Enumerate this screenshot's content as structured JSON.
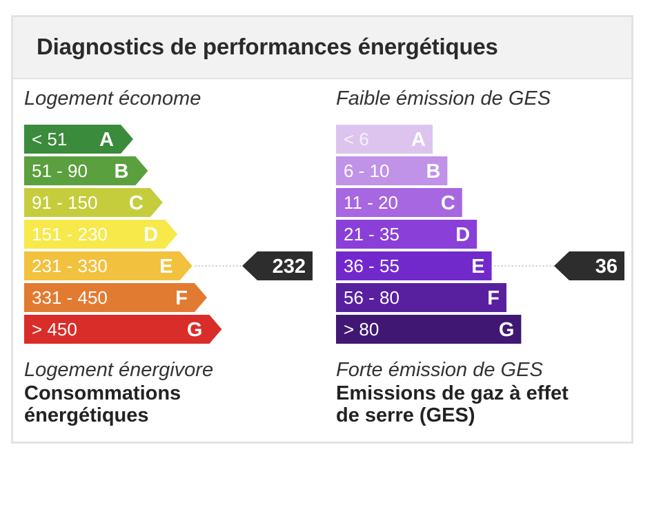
{
  "header": {
    "title": "Diagnostics de performances énergétiques"
  },
  "energy": {
    "top_caption": "Logement économe",
    "bottom_caption": "Logement énergivore",
    "title": "Consommations\nénergétiques"
  },
  "ges": {
    "top_caption": "Faible émission de GES",
    "bottom_caption": "Forte émission de GES",
    "title": "Emissions de gaz à effet\nde serre (GES)"
  },
  "chart_data": [
    {
      "type": "bar",
      "id": "energy",
      "title": "Consommations énergétiques",
      "categories": [
        "A",
        "B",
        "C",
        "D",
        "E",
        "F",
        "G"
      ],
      "ranges": [
        "< 51",
        "51 - 90",
        "91 - 150",
        "151 - 230",
        "231 - 330",
        "331 - 450",
        "> 450"
      ],
      "colors": [
        "#3a8b3c",
        "#5aa03e",
        "#c5cd3c",
        "#f7e94a",
        "#f2c13e",
        "#e27b32",
        "#d82d28"
      ],
      "range_text_colors": [
        "#ffffff",
        "#ffffff",
        "#ffffff",
        "#ffffff",
        "#ffffff",
        "#ffffff",
        "#ffffff"
      ],
      "marker": {
        "category": "E",
        "value": 232,
        "label": "232"
      }
    },
    {
      "type": "bar",
      "id": "ges",
      "title": "Emissions de gaz à effet de serre (GES)",
      "categories": [
        "A",
        "B",
        "C",
        "D",
        "E",
        "F",
        "G"
      ],
      "ranges": [
        "< 6",
        "6 - 10",
        "11 - 20",
        "21 - 35",
        "36 - 55",
        "56 - 80",
        "> 80"
      ],
      "colors": [
        "#dcc4ef",
        "#c092e8",
        "#a767e0",
        "#8a40d8",
        "#7229cc",
        "#58209f",
        "#401873"
      ],
      "range_text_colors": [
        "#f6eefc",
        "#ffffff",
        "#ffffff",
        "#ffffff",
        "#ffffff",
        "#ffffff",
        "#ffffff"
      ],
      "marker": {
        "category": "E",
        "value": 36,
        "label": "36"
      }
    }
  ]
}
